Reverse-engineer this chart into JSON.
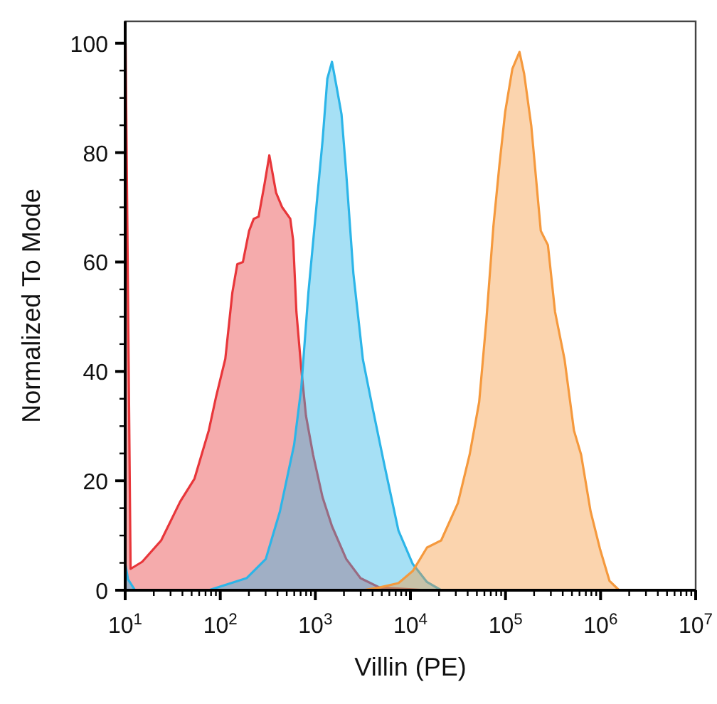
{
  "chart_data": {
    "type": "area",
    "xlabel": "Villin (PE)",
    "ylabel": "Normalized To Mode",
    "log": "x",
    "xlim": [
      10,
      10000000
    ],
    "ylim": [
      0,
      104
    ],
    "xticks": [
      {
        "value": 10,
        "label": "10$^{1}$"
      },
      {
        "value": 20,
        "label": null
      },
      {
        "value": 30,
        "label": null
      },
      {
        "value": 40,
        "label": null
      },
      {
        "value": 50,
        "label": null
      },
      {
        "value": 60,
        "label": null
      },
      {
        "value": 70,
        "label": null
      },
      {
        "value": 80,
        "label": null
      },
      {
        "value": 90,
        "label": null
      },
      {
        "value": 100,
        "label": "10$^{2}$"
      },
      {
        "value": 200,
        "label": null
      },
      {
        "value": 300,
        "label": null
      },
      {
        "value": 400,
        "label": null
      },
      {
        "value": 500,
        "label": null
      },
      {
        "value": 600,
        "label": null
      },
      {
        "value": 700,
        "label": null
      },
      {
        "value": 800,
        "label": null
      },
      {
        "value": 900,
        "label": null
      },
      {
        "value": 1000,
        "label": "10$^{3}$"
      },
      {
        "value": 2000,
        "label": null
      },
      {
        "value": 3000,
        "label": null
      },
      {
        "value": 4000,
        "label": null
      },
      {
        "value": 5000,
        "label": null
      },
      {
        "value": 6000,
        "label": null
      },
      {
        "value": 7000,
        "label": null
      },
      {
        "value": 8000,
        "label": null
      },
      {
        "value": 9000,
        "label": null
      },
      {
        "value": 10000,
        "label": "10$^{4}$"
      },
      {
        "value": 20000,
        "label": null
      },
      {
        "value": 30000,
        "label": null
      },
      {
        "value": 40000,
        "label": null
      },
      {
        "value": 50000,
        "label": null
      },
      {
        "value": 60000,
        "label": null
      },
      {
        "value": 70000,
        "label": null
      },
      {
        "value": 80000,
        "label": null
      },
      {
        "value": 90000,
        "label": null
      },
      {
        "value": 100000,
        "label": "10$^{5}$"
      },
      {
        "value": 200000,
        "label": null
      },
      {
        "value": 300000,
        "label": null
      },
      {
        "value": 400000,
        "label": null
      },
      {
        "value": 500000,
        "label": null
      },
      {
        "value": 600000,
        "label": null
      },
      {
        "value": 700000,
        "label": null
      },
      {
        "value": 800000,
        "label": null
      },
      {
        "value": 900000,
        "label": null
      },
      {
        "value": 1000000,
        "label": "10$^{6}$"
      },
      {
        "value": 2000000,
        "label": null
      },
      {
        "value": 3000000,
        "label": null
      },
      {
        "value": 4000000,
        "label": null
      },
      {
        "value": 5000000,
        "label": null
      },
      {
        "value": 6000000,
        "label": null
      },
      {
        "value": 7000000,
        "label": null
      },
      {
        "value": 8000000,
        "label": null
      },
      {
        "value": 9000000,
        "label": null
      },
      {
        "value": 10000000,
        "label": "10$^{7}$"
      }
    ],
    "yticks": [
      0,
      {
        "value": 5,
        "label": null
      },
      {
        "value": 10,
        "label": null
      },
      {
        "value": 15,
        "label": null
      },
      20,
      {
        "value": 25,
        "label": null
      },
      {
        "value": 30,
        "label": null
      },
      {
        "value": 35,
        "label": null
      },
      40,
      {
        "value": 45,
        "label": null
      },
      {
        "value": 50,
        "label": null
      },
      {
        "value": 55,
        "label": null
      },
      60,
      {
        "value": 65,
        "label": null
      },
      {
        "value": 70,
        "label": null
      },
      {
        "value": 75,
        "label": null
      },
      80,
      {
        "value": 85,
        "label": null
      },
      {
        "value": 90,
        "label": null
      },
      {
        "value": 95,
        "label": null
      },
      100
    ],
    "series": [
      {
        "color": "#e8363a",
        "x": [
          10,
          10.1,
          11.4,
          15.1,
          23.9,
          37.9,
          53.6,
          75.7,
          89.9,
          113,
          134,
          151,
          173,
          201,
          225,
          253,
          293,
          328,
          386,
          448,
          545,
          584,
          632,
          711,
          797,
          946,
          1191,
          1496,
          2113,
          2985,
          4730,
          14800
        ],
        "values": [
          0,
          100,
          3.9,
          5.2,
          9.1,
          16.2,
          20.4,
          29.2,
          35.2,
          42.3,
          54.4,
          59.6,
          60,
          65.7,
          67.9,
          68.3,
          74.4,
          79.5,
          72.7,
          70,
          67.9,
          64,
          50.9,
          40.5,
          31.9,
          24.8,
          17,
          11.7,
          5.7,
          2.2,
          0.5,
          0
        ]
      },
      {
        "color": "#2cb5e8",
        "x": [
          10,
          10.7,
          12.7,
          75.7,
          189,
          301,
          424,
          598,
          711,
          845,
          1003,
          1191,
          1336,
          1496,
          1682,
          1885,
          2113,
          2512,
          3162,
          3981,
          5309,
          7482,
          10570,
          14930,
          21050
        ],
        "values": [
          5,
          2,
          0,
          0,
          2.2,
          5.7,
          14.4,
          26.6,
          37,
          54.4,
          68.3,
          82.2,
          93.5,
          96.6,
          91.8,
          87,
          76.2,
          57.9,
          42.2,
          33.5,
          23,
          10.9,
          4.8,
          1.5,
          0
        ]
      },
      {
        "color": "#f5993d",
        "x": [
          3162,
          4730,
          7482,
          10570,
          14930,
          21050,
          31550,
          41980,
          52850,
          62810,
          74650,
          86500,
          99300,
          118000,
          140300,
          157100,
          186700,
          235000,
          279300,
          331900,
          417800,
          524800,
          623700,
          785200,
          990800,
          1242000,
          1567000
        ],
        "values": [
          0,
          0.5,
          1.3,
          3.5,
          7.8,
          9.1,
          15.9,
          24.8,
          34.4,
          49.2,
          66.6,
          77.9,
          87.5,
          95.3,
          98.4,
          94.4,
          84.9,
          65.7,
          63.1,
          50.9,
          42.2,
          29.2,
          24.8,
          14.4,
          7.4,
          1.7,
          0
        ]
      }
    ]
  }
}
